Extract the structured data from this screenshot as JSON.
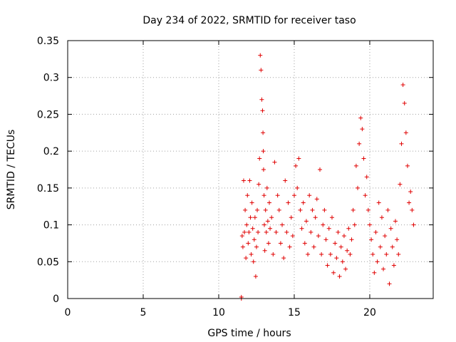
{
  "chart_data": {
    "type": "scatter",
    "title": "Day 234 of 2022, SRMTID for receiver taso",
    "xlabel": "GPS time / hours",
    "ylabel": "SRMTID / TECUs",
    "xlim": [
      0,
      24.2
    ],
    "ylim": [
      0,
      0.35
    ],
    "xticks": [
      0,
      5,
      10,
      15,
      20
    ],
    "xtick_labels": [
      "0",
      "5",
      "10",
      "15",
      "20"
    ],
    "yticks": [
      0,
      0.05,
      0.1,
      0.15,
      0.2,
      0.25,
      0.3,
      0.35
    ],
    "ytick_labels": [
      "0",
      "0.05",
      "0.1",
      "0.15",
      "0.2",
      "0.25",
      "0.3",
      "0.35"
    ],
    "grid": true,
    "marker": "+",
    "color": "#e00000",
    "series": [
      {
        "x": [
          11.5,
          11.5,
          11.55,
          11.6,
          11.65,
          11.7,
          11.75,
          11.8,
          11.85,
          11.9,
          11.95,
          12.0,
          12.05,
          12.1,
          12.15,
          12.2,
          12.25,
          12.3,
          12.35,
          12.4,
          12.45,
          12.5,
          12.55,
          12.6,
          12.65,
          12.7,
          12.75,
          12.8,
          12.85,
          12.9,
          12.93,
          12.95,
          12.97,
          13.0,
          13.02,
          13.05,
          13.1,
          13.15,
          13.2,
          13.25,
          13.3,
          13.35,
          13.4,
          13.5,
          13.6,
          13.7,
          13.8,
          13.9,
          14.0,
          14.1,
          14.2,
          14.3,
          14.4,
          14.5,
          14.6,
          14.7,
          14.8,
          14.9,
          15.0,
          15.1,
          15.2,
          15.3,
          15.4,
          15.5,
          15.6,
          15.7,
          15.8,
          15.9,
          16.0,
          16.1,
          16.2,
          16.3,
          16.4,
          16.5,
          16.6,
          16.7,
          16.8,
          16.9,
          17.0,
          17.1,
          17.2,
          17.3,
          17.4,
          17.5,
          17.6,
          17.7,
          17.8,
          17.9,
          18.0,
          18.1,
          18.2,
          18.3,
          18.4,
          18.5,
          18.6,
          18.7,
          18.8,
          18.9,
          19.0,
          19.1,
          19.2,
          19.3,
          19.4,
          19.5,
          19.6,
          19.7,
          19.8,
          19.9,
          20.0,
          20.1,
          20.2,
          20.3,
          20.4,
          20.5,
          20.6,
          20.7,
          20.8,
          20.9,
          21.0,
          21.1,
          21.2,
          21.3,
          21.4,
          21.5,
          21.6,
          21.7,
          21.8,
          21.9,
          22.0,
          22.1,
          22.2,
          22.3,
          22.4,
          22.5,
          22.6,
          22.7,
          22.8,
          22.9
        ],
        "y": [
          0.0,
          0.002,
          0.085,
          0.07,
          0.16,
          0.09,
          0.12,
          0.055,
          0.1,
          0.14,
          0.075,
          0.09,
          0.16,
          0.11,
          0.06,
          0.13,
          0.095,
          0.05,
          0.08,
          0.11,
          0.03,
          0.07,
          0.12,
          0.09,
          0.155,
          0.19,
          0.33,
          0.31,
          0.27,
          0.255,
          0.225,
          0.2,
          0.175,
          0.14,
          0.1,
          0.065,
          0.12,
          0.09,
          0.15,
          0.105,
          0.075,
          0.13,
          0.095,
          0.11,
          0.06,
          0.185,
          0.09,
          0.14,
          0.12,
          0.075,
          0.1,
          0.055,
          0.16,
          0.09,
          0.13,
          0.07,
          0.11,
          0.085,
          0.14,
          0.18,
          0.15,
          0.19,
          0.12,
          0.095,
          0.13,
          0.075,
          0.105,
          0.06,
          0.14,
          0.09,
          0.12,
          0.07,
          0.11,
          0.135,
          0.085,
          0.175,
          0.06,
          0.1,
          0.12,
          0.08,
          0.045,
          0.095,
          0.06,
          0.11,
          0.035,
          0.075,
          0.055,
          0.09,
          0.03,
          0.07,
          0.05,
          0.085,
          0.04,
          0.065,
          0.095,
          0.06,
          0.08,
          0.12,
          0.1,
          0.18,
          0.15,
          0.21,
          0.245,
          0.23,
          0.19,
          0.14,
          0.165,
          0.12,
          0.1,
          0.08,
          0.06,
          0.035,
          0.09,
          0.05,
          0.13,
          0.07,
          0.11,
          0.04,
          0.085,
          0.06,
          0.12,
          0.02,
          0.095,
          0.07,
          0.045,
          0.105,
          0.08,
          0.06,
          0.155,
          0.21,
          0.29,
          0.265,
          0.225,
          0.18,
          0.13,
          0.145,
          0.12,
          0.1
        ]
      }
    ]
  }
}
